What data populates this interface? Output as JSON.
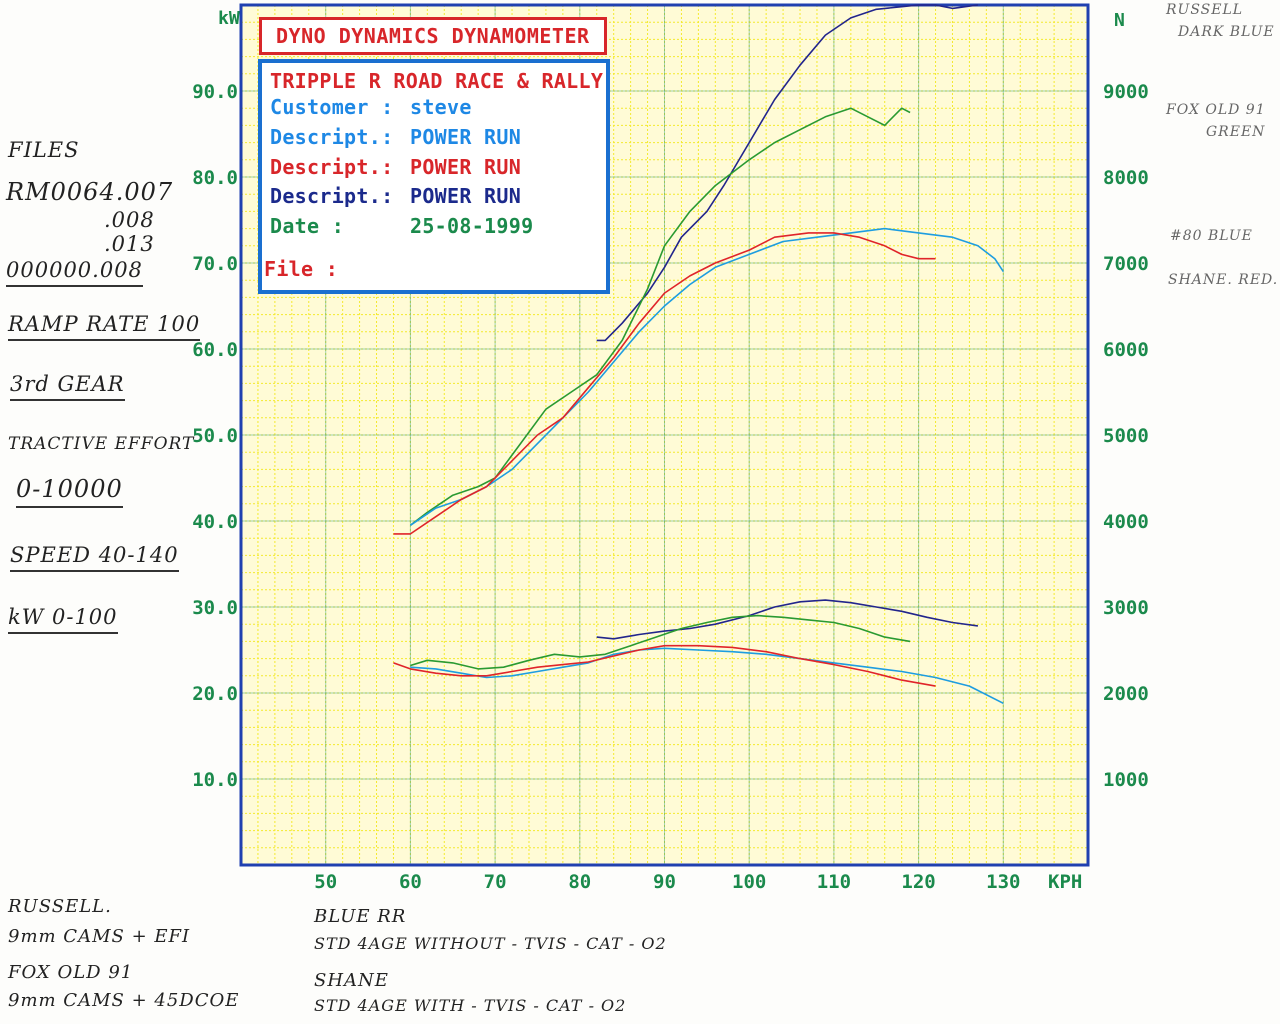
{
  "header": {
    "title": "DYNO DYNAMICS DYNAMOMETER",
    "shop": "TRIPPLE R ROAD RACE & RALLY",
    "rows": [
      {
        "label": "Customer :",
        "value": "steve"
      },
      {
        "label": "Descript.:",
        "value": "POWER RUN"
      },
      {
        "label": "Descript.:",
        "value": "POWER RUN"
      },
      {
        "label": "Descript.:",
        "value": "POWER RUN"
      },
      {
        "label": "Date      :",
        "value": "25-08-1999"
      },
      {
        "label": "File     :",
        "value": ""
      }
    ]
  },
  "colors": {
    "green": "#2a9a32",
    "navy": "#22258c",
    "red": "#e0242a",
    "cyan": "#1e9de0",
    "grid": "#f4ea2e",
    "axisText": "#1b8a4c",
    "frame": "#2040b0"
  },
  "notes": {
    "left": [
      "FILES",
      "RM0064.007",
      ".008",
      ".013",
      "000000.008",
      "RAMP RATE 100",
      "3rd GEAR",
      "TRACTIVE EFFORT",
      "0-10000",
      "SPEED 40-140",
      "kW 0-100"
    ],
    "right": [
      "RUSSELL",
      "DARK BLUE",
      "FOX OLD 91",
      "GREEN",
      "#80 BLUE",
      "SHANE. RED."
    ],
    "bottom": [
      "RUSSELL.",
      "9mm CAMS + EFI",
      "FOX OLD 91",
      "9mm CAMS + 45DCOE",
      "BLUE RR",
      "STD 4AGE WITHOUT - TVIS - CAT - O2",
      "SHANE",
      "STD 4AGE WITH - TVIS - CAT - O2"
    ]
  },
  "chart_data": {
    "type": "line",
    "xlabel": "KPH",
    "ylabel_left": "kW",
    "ylabel_right": "N",
    "xlim": [
      40,
      140
    ],
    "ylim_left": [
      0,
      100
    ],
    "ylim_right": [
      0,
      10000
    ],
    "x_ticks": [
      "50",
      "60",
      "70",
      "80",
      "90",
      "100",
      "110",
      "120",
      "130"
    ],
    "y_ticks_left": [
      "10.0",
      "20.0",
      "30.0",
      "40.0",
      "50.0",
      "60.0",
      "70.0",
      "80.0",
      "90.0"
    ],
    "y_ticks_right": [
      "1000",
      "2000",
      "3000",
      "4000",
      "5000",
      "6000",
      "7000",
      "8000",
      "9000"
    ],
    "grid": true,
    "series": [
      {
        "color": "#22258c",
        "axis": "right",
        "values": [
          [
            82,
            6100
          ],
          [
            83,
            6100
          ],
          [
            85,
            6300
          ],
          [
            88,
            6650
          ],
          [
            90,
            6950
          ],
          [
            92,
            7300
          ],
          [
            95,
            7600
          ],
          [
            97,
            7900
          ],
          [
            100,
            8400
          ],
          [
            103,
            8900
          ],
          [
            106,
            9300
          ],
          [
            109,
            9650
          ],
          [
            112,
            9850
          ],
          [
            115,
            9950
          ],
          [
            118,
            9980
          ],
          [
            120,
            10000
          ],
          [
            122,
            10000
          ],
          [
            124,
            9960
          ],
          [
            127,
            10000
          ]
        ]
      },
      {
        "color": "#2a9a32",
        "axis": "right",
        "values": [
          [
            60,
            3950
          ],
          [
            62,
            4100
          ],
          [
            65,
            4300
          ],
          [
            68,
            4400
          ],
          [
            70,
            4500
          ],
          [
            73,
            4900
          ],
          [
            76,
            5300
          ],
          [
            79,
            5500
          ],
          [
            82,
            5700
          ],
          [
            85,
            6100
          ],
          [
            88,
            6700
          ],
          [
            90,
            7200
          ],
          [
            93,
            7600
          ],
          [
            96,
            7900
          ],
          [
            100,
            8200
          ],
          [
            103,
            8400
          ],
          [
            106,
            8550
          ],
          [
            109,
            8700
          ],
          [
            112,
            8800
          ],
          [
            114,
            8700
          ],
          [
            116,
            8600
          ],
          [
            118,
            8800
          ],
          [
            119,
            8750
          ]
        ]
      },
      {
        "color": "#1e9de0",
        "axis": "right",
        "values": [
          [
            60,
            3950
          ],
          [
            63,
            4150
          ],
          [
            66,
            4250
          ],
          [
            69,
            4400
          ],
          [
            72,
            4600
          ],
          [
            75,
            4900
          ],
          [
            78,
            5200
          ],
          [
            81,
            5500
          ],
          [
            84,
            5850
          ],
          [
            87,
            6200
          ],
          [
            90,
            6500
          ],
          [
            93,
            6750
          ],
          [
            96,
            6950
          ],
          [
            100,
            7100
          ],
          [
            104,
            7250
          ],
          [
            108,
            7300
          ],
          [
            112,
            7350
          ],
          [
            116,
            7400
          ],
          [
            120,
            7350
          ],
          [
            124,
            7300
          ],
          [
            127,
            7200
          ],
          [
            129,
            7050
          ],
          [
            130,
            6900
          ]
        ]
      },
      {
        "color": "#e0242a",
        "axis": "right",
        "values": [
          [
            58,
            3850
          ],
          [
            60,
            3850
          ],
          [
            63,
            4050
          ],
          [
            66,
            4250
          ],
          [
            69,
            4400
          ],
          [
            72,
            4700
          ],
          [
            75,
            5000
          ],
          [
            78,
            5200
          ],
          [
            81,
            5550
          ],
          [
            84,
            5900
          ],
          [
            87,
            6300
          ],
          [
            90,
            6650
          ],
          [
            93,
            6850
          ],
          [
            96,
            7000
          ],
          [
            100,
            7150
          ],
          [
            103,
            7300
          ],
          [
            107,
            7350
          ],
          [
            110,
            7350
          ],
          [
            113,
            7300
          ],
          [
            116,
            7200
          ],
          [
            118,
            7100
          ],
          [
            120,
            7050
          ],
          [
            122,
            7050
          ]
        ]
      },
      {
        "color": "#22258c",
        "axis": "left",
        "values": [
          [
            82,
            26.5
          ],
          [
            84,
            26.3
          ],
          [
            87,
            26.8
          ],
          [
            90,
            27.2
          ],
          [
            93,
            27.5
          ],
          [
            96,
            28.0
          ],
          [
            100,
            29.0
          ],
          [
            103,
            30.0
          ],
          [
            106,
            30.6
          ],
          [
            109,
            30.8
          ],
          [
            112,
            30.5
          ],
          [
            115,
            30.0
          ],
          [
            118,
            29.5
          ],
          [
            121,
            28.8
          ],
          [
            124,
            28.2
          ],
          [
            127,
            27.8
          ]
        ]
      },
      {
        "color": "#2a9a32",
        "axis": "left",
        "values": [
          [
            60,
            23.2
          ],
          [
            62,
            23.8
          ],
          [
            65,
            23.5
          ],
          [
            68,
            22.8
          ],
          [
            71,
            23.0
          ],
          [
            74,
            23.8
          ],
          [
            77,
            24.5
          ],
          [
            80,
            24.2
          ],
          [
            83,
            24.5
          ],
          [
            86,
            25.5
          ],
          [
            89,
            26.5
          ],
          [
            92,
            27.5
          ],
          [
            95,
            28.2
          ],
          [
            98,
            28.8
          ],
          [
            101,
            29.0
          ],
          [
            104,
            28.8
          ],
          [
            107,
            28.5
          ],
          [
            110,
            28.2
          ],
          [
            113,
            27.5
          ],
          [
            116,
            26.5
          ],
          [
            119,
            26.0
          ]
        ]
      },
      {
        "color": "#1e9de0",
        "axis": "left",
        "values": [
          [
            60,
            23.0
          ],
          [
            63,
            22.8
          ],
          [
            66,
            22.3
          ],
          [
            69,
            21.8
          ],
          [
            72,
            22.0
          ],
          [
            75,
            22.5
          ],
          [
            78,
            23.0
          ],
          [
            81,
            23.5
          ],
          [
            84,
            24.5
          ],
          [
            87,
            25.0
          ],
          [
            90,
            25.2
          ],
          [
            94,
            25.0
          ],
          [
            98,
            24.8
          ],
          [
            102,
            24.5
          ],
          [
            106,
            24.0
          ],
          [
            110,
            23.5
          ],
          [
            114,
            23.0
          ],
          [
            118,
            22.5
          ],
          [
            122,
            21.8
          ],
          [
            126,
            20.8
          ],
          [
            130,
            18.8
          ]
        ]
      },
      {
        "color": "#e0242a",
        "axis": "left",
        "values": [
          [
            58,
            23.5
          ],
          [
            60,
            22.8
          ],
          [
            63,
            22.3
          ],
          [
            66,
            22.0
          ],
          [
            69,
            22.0
          ],
          [
            72,
            22.5
          ],
          [
            75,
            23.0
          ],
          [
            78,
            23.3
          ],
          [
            81,
            23.6
          ],
          [
            84,
            24.3
          ],
          [
            87,
            25.0
          ],
          [
            90,
            25.5
          ],
          [
            94,
            25.5
          ],
          [
            98,
            25.3
          ],
          [
            102,
            24.8
          ],
          [
            106,
            24.0
          ],
          [
            110,
            23.3
          ],
          [
            114,
            22.5
          ],
          [
            118,
            21.5
          ],
          [
            122,
            20.8
          ]
        ]
      }
    ]
  }
}
